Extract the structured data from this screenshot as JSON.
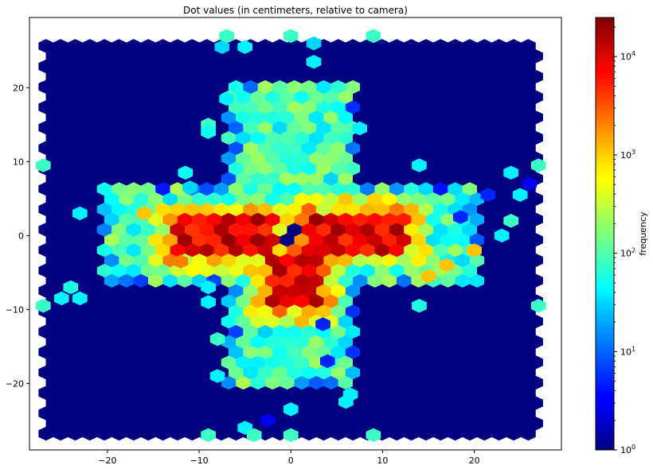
{
  "chart_data": {
    "type": "heatmap",
    "subtype": "hexbin",
    "title": "Dot values (in centimeters, relative to camera)",
    "xlabel": "",
    "ylabel": "",
    "xlim": [
      -28.5,
      29.5
    ],
    "ylim": [
      -29,
      29.5
    ],
    "xticks": [
      -20,
      -10,
      0,
      10,
      20
    ],
    "yticks": [
      -20,
      -10,
      0,
      10,
      20
    ],
    "xtick_labels": [
      "−20",
      "−10",
      "0",
      "10",
      "20"
    ],
    "ytick_labels": [
      "−20",
      "−10",
      "0",
      "10",
      "20"
    ],
    "extent": {
      "xmin": -26.7,
      "xmax": 26.7,
      "ymin": -26.8,
      "ymax": 26.8
    },
    "hex_size": 0.92,
    "background_value": 1,
    "colormap": "jet",
    "color_scale": "log",
    "colorbar": {
      "label": "frequency",
      "range": [
        1,
        25000
      ],
      "ticks": [
        {
          "exp": 0,
          "label": "10",
          "sup": "0"
        },
        {
          "exp": 1,
          "label": "10",
          "sup": "1"
        },
        {
          "exp": 2,
          "label": "10",
          "sup": "2"
        },
        {
          "exp": 3,
          "label": "10",
          "sup": "3"
        },
        {
          "exp": 4,
          "label": "10",
          "sup": "4"
        }
      ]
    },
    "regions": [
      {
        "name": "cross-vertical-arm",
        "x": [
          -7,
          7.5
        ],
        "y": [
          -20.5,
          20.5
        ],
        "typical_frequency": 150
      },
      {
        "name": "cross-horizontal-arm",
        "x": [
          -20.5,
          20.5
        ],
        "y": [
          -6.5,
          6.5
        ],
        "typical_frequency": 150
      },
      {
        "name": "hot-band-left",
        "x": [
          -13,
          -2
        ],
        "y": [
          -3,
          2.5
        ],
        "typical_frequency": 8000
      },
      {
        "name": "hot-band-right",
        "x": [
          1.5,
          13
        ],
        "y": [
          -2.5,
          3.5
        ],
        "typical_frequency": 8000
      },
      {
        "name": "hot-stem-lower",
        "x": [
          -2.5,
          3.5
        ],
        "y": [
          -10,
          -2
        ],
        "typical_frequency": 12000
      },
      {
        "name": "cold-center",
        "x": [
          -1,
          1
        ],
        "y": [
          -1,
          1
        ],
        "typical_frequency": 1
      }
    ],
    "outliers": [
      {
        "x": -24,
        "y": -7,
        "frequency": 60
      },
      {
        "x": -25,
        "y": -8.5,
        "frequency": 40
      },
      {
        "x": -23,
        "y": -8.5,
        "frequency": 40
      },
      {
        "x": -23,
        "y": 3,
        "frequency": 40
      },
      {
        "x": -27,
        "y": 9.5,
        "frequency": 80
      },
      {
        "x": -27,
        "y": -9.5,
        "frequency": 80
      },
      {
        "x": -11.5,
        "y": 8.5,
        "frequency": 50
      },
      {
        "x": -11,
        "y": 6.5,
        "frequency": 30
      },
      {
        "x": 14,
        "y": 9.5,
        "frequency": 40
      },
      {
        "x": 24,
        "y": 8.5,
        "frequency": 40
      },
      {
        "x": 26,
        "y": 7,
        "frequency": 3
      },
      {
        "x": 21.5,
        "y": 5.5,
        "frequency": 5
      },
      {
        "x": 27,
        "y": 9.5,
        "frequency": 80
      },
      {
        "x": 27,
        "y": -9.5,
        "frequency": 80
      },
      {
        "x": 25,
        "y": 5.5,
        "frequency": 40
      },
      {
        "x": 24,
        "y": 2,
        "frequency": 80
      },
      {
        "x": 23,
        "y": 0,
        "frequency": 40
      },
      {
        "x": 14,
        "y": -9.5,
        "frequency": 60
      },
      {
        "x": 7.5,
        "y": 14.5,
        "frequency": 40
      },
      {
        "x": -7,
        "y": 18.5,
        "frequency": 40
      },
      {
        "x": -9,
        "y": 15,
        "frequency": 80
      },
      {
        "x": -9,
        "y": 14,
        "frequency": 50
      },
      {
        "x": -9,
        "y": -7,
        "frequency": 40
      },
      {
        "x": -9,
        "y": -9,
        "frequency": 40
      },
      {
        "x": -8,
        "y": -14,
        "frequency": 80
      },
      {
        "x": -8,
        "y": -19,
        "frequency": 40
      },
      {
        "x": -7.5,
        "y": 25.5,
        "frequency": 30
      },
      {
        "x": -5,
        "y": 25.5,
        "frequency": 40
      },
      {
        "x": 2.5,
        "y": 23.5,
        "frequency": 40
      },
      {
        "x": -7,
        "y": 27,
        "frequency": 80
      },
      {
        "x": 0,
        "y": 27,
        "frequency": 80
      },
      {
        "x": 2.5,
        "y": 26,
        "frequency": 30
      },
      {
        "x": 9,
        "y": 27,
        "frequency": 80
      },
      {
        "x": -5,
        "y": -26,
        "frequency": 40
      },
      {
        "x": -2.5,
        "y": -25,
        "frequency": 3
      },
      {
        "x": 0,
        "y": -23.5,
        "frequency": 40
      },
      {
        "x": -9,
        "y": -27,
        "frequency": 80
      },
      {
        "x": -4,
        "y": -27,
        "frequency": 80
      },
      {
        "x": 0,
        "y": -27,
        "frequency": 80
      },
      {
        "x": 9,
        "y": -27,
        "frequency": 80
      },
      {
        "x": 6,
        "y": -22.5,
        "frequency": 40
      },
      {
        "x": 6.5,
        "y": -21.5,
        "frequency": 40
      },
      {
        "x": 4,
        "y": -17,
        "frequency": 5
      },
      {
        "x": 3.5,
        "y": -12,
        "frequency": 5
      },
      {
        "x": 18.5,
        "y": 2.5,
        "frequency": 5
      },
      {
        "x": 15,
        "y": -5.5,
        "frequency": 1000
      },
      {
        "x": 17,
        "y": -4,
        "frequency": 1000
      },
      {
        "x": 20,
        "y": -2,
        "frequency": 1000
      },
      {
        "x": -16,
        "y": 3,
        "frequency": 1000
      },
      {
        "x": -12,
        "y": -3.5,
        "frequency": 2000
      }
    ]
  }
}
